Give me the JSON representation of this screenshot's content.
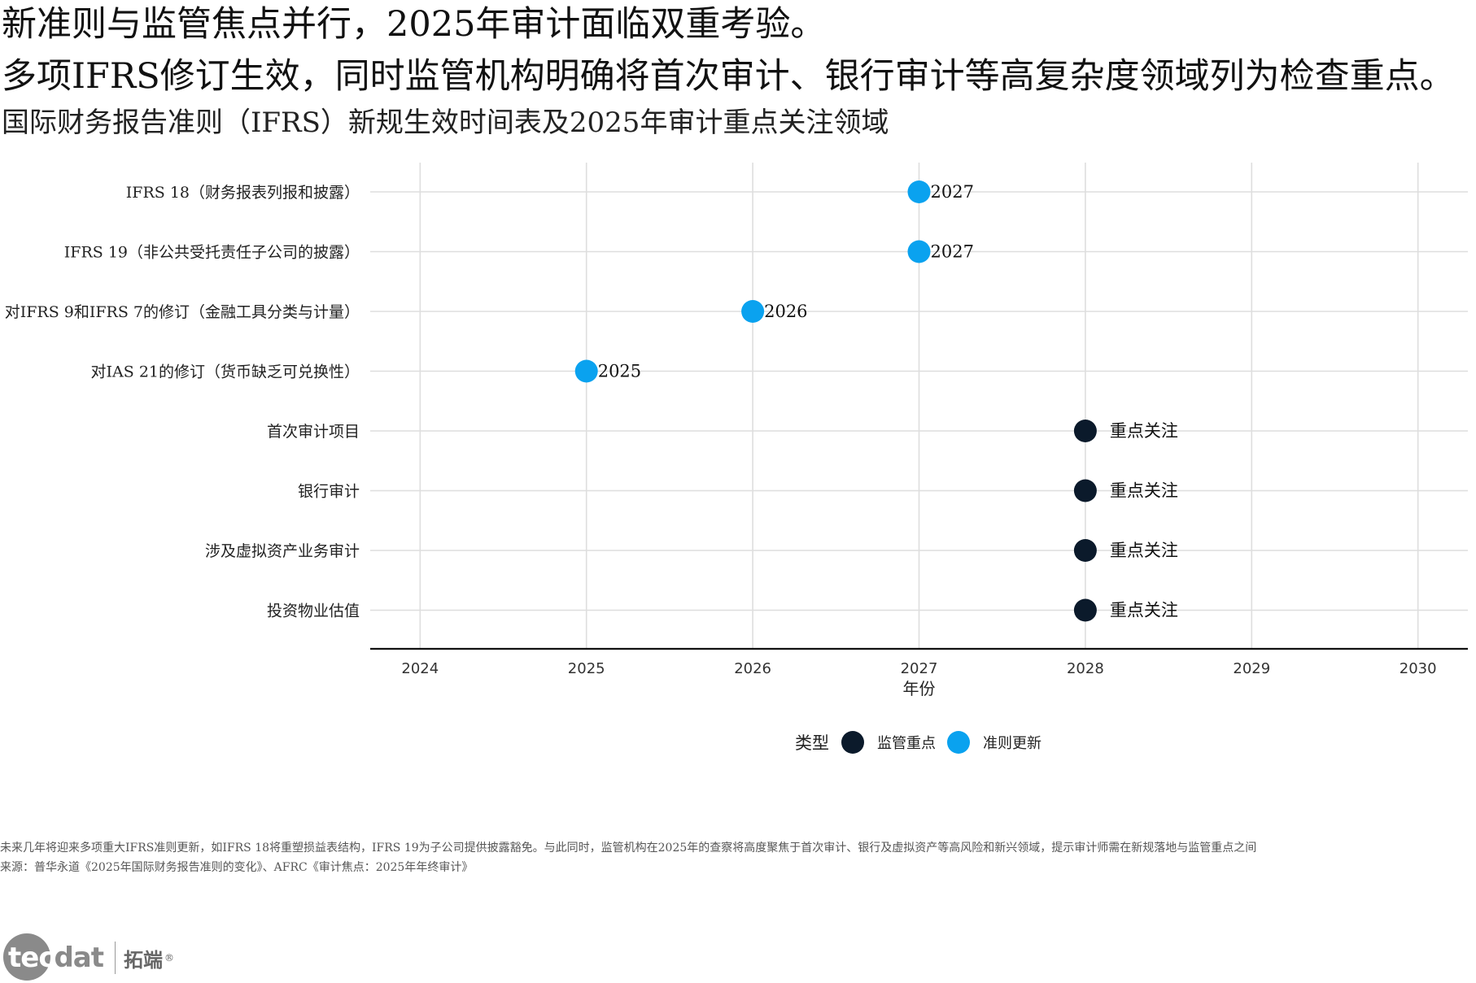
{
  "header": {
    "title_line1": "新准则与监管焦点并行，2025年审计面临双重考验。",
    "title_line2": "多项IFRS修订生效，同时监管机构明确将首次审计、银行审计等高复杂度领域列为检查重点。",
    "subtitle": "国际财务报告准则（IFRS）新规生效时间表及2025年审计重点关注领域"
  },
  "chart_data": {
    "type": "scatter",
    "xlabel": "年份",
    "ylabel": "",
    "xlim": [
      2023.7,
      2030.3
    ],
    "x_ticks": [
      2024,
      2025,
      2026,
      2027,
      2028,
      2029,
      2030
    ],
    "grid": true,
    "legend": {
      "title": "类型",
      "position": "bottom",
      "entries": [
        {
          "name": "监管重点",
          "color": "#0b1a2b"
        },
        {
          "name": "准则更新",
          "color": "#0aa2ef"
        }
      ]
    },
    "points": [
      {
        "category": "IFRS 18（财务报表列报和披露）",
        "x": 2027,
        "type": "准则更新",
        "label": "2027"
      },
      {
        "category": "IFRS 19（非公共受托责任子公司的披露）",
        "x": 2027,
        "type": "准则更新",
        "label": "2027"
      },
      {
        "category": "对IFRS 9和IFRS 7的修订（金融工具分类与计量）",
        "x": 2026,
        "type": "准则更新",
        "label": "2026"
      },
      {
        "category": "对IAS 21的修订（货币缺乏可兑换性）",
        "x": 2025,
        "type": "准则更新",
        "label": "2025"
      },
      {
        "category": "首次审计项目",
        "x": 2028,
        "type": "监管重点",
        "label": "重点关注"
      },
      {
        "category": "银行审计",
        "x": 2028,
        "type": "监管重点",
        "label": "重点关注"
      },
      {
        "category": "涉及虚拟资产业务审计",
        "x": 2028,
        "type": "监管重点",
        "label": "重点关注"
      },
      {
        "category": "投资物业估值",
        "x": 2028,
        "type": "监管重点",
        "label": "重点关注"
      }
    ]
  },
  "notes": {
    "line1": "未来几年将迎来多项重大IFRS准则更新，如IFRS 18将重塑损益表结构，IFRS 19为子公司提供披露豁免。与此同时，监管机构在2025年的查察将高度聚焦于首次审计、银行及虚拟资产等高风险和新兴领域，提示审计师需在新规落地与监管重点之间",
    "line2": "来源：普华永道《2025年国际财务报告准则的变化》、AFRC《审计焦点：2025年年终审计》"
  },
  "logo": {
    "part1": "tec",
    "part2": "dat",
    "cn": "拓端",
    "reg": "®"
  }
}
